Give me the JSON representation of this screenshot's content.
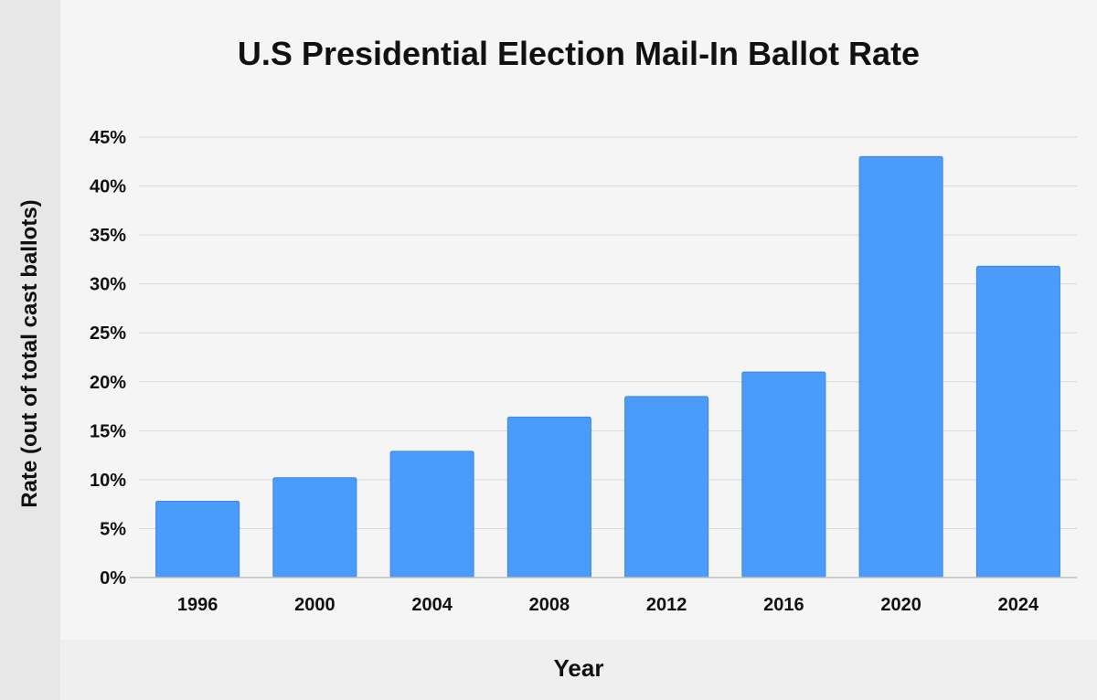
{
  "chart_data": {
    "type": "bar",
    "title": "U.S Presidential Election Mail-In Ballot Rate",
    "xlabel": "Year",
    "ylabel": "Rate (out of total cast ballots)",
    "categories": [
      "1996",
      "2000",
      "2004",
      "2008",
      "2012",
      "2016",
      "2020",
      "2024"
    ],
    "values": [
      7.8,
      10.2,
      12.9,
      16.4,
      18.5,
      21.0,
      43.0,
      31.8
    ],
    "ylim": [
      0,
      45
    ],
    "yticks": [
      0,
      5,
      10,
      15,
      20,
      25,
      30,
      35,
      40,
      45
    ],
    "ytick_labels": [
      "0%",
      "5%",
      "10%",
      "15%",
      "20%",
      "25%",
      "30%",
      "35%",
      "40%",
      "45%"
    ],
    "grid": true,
    "legend": "none",
    "colors": {
      "bar": "#4a9bfa",
      "bar_edge": "#3a87e6",
      "grid": "#d9d9d9",
      "axis": "#bdbdbd"
    }
  }
}
